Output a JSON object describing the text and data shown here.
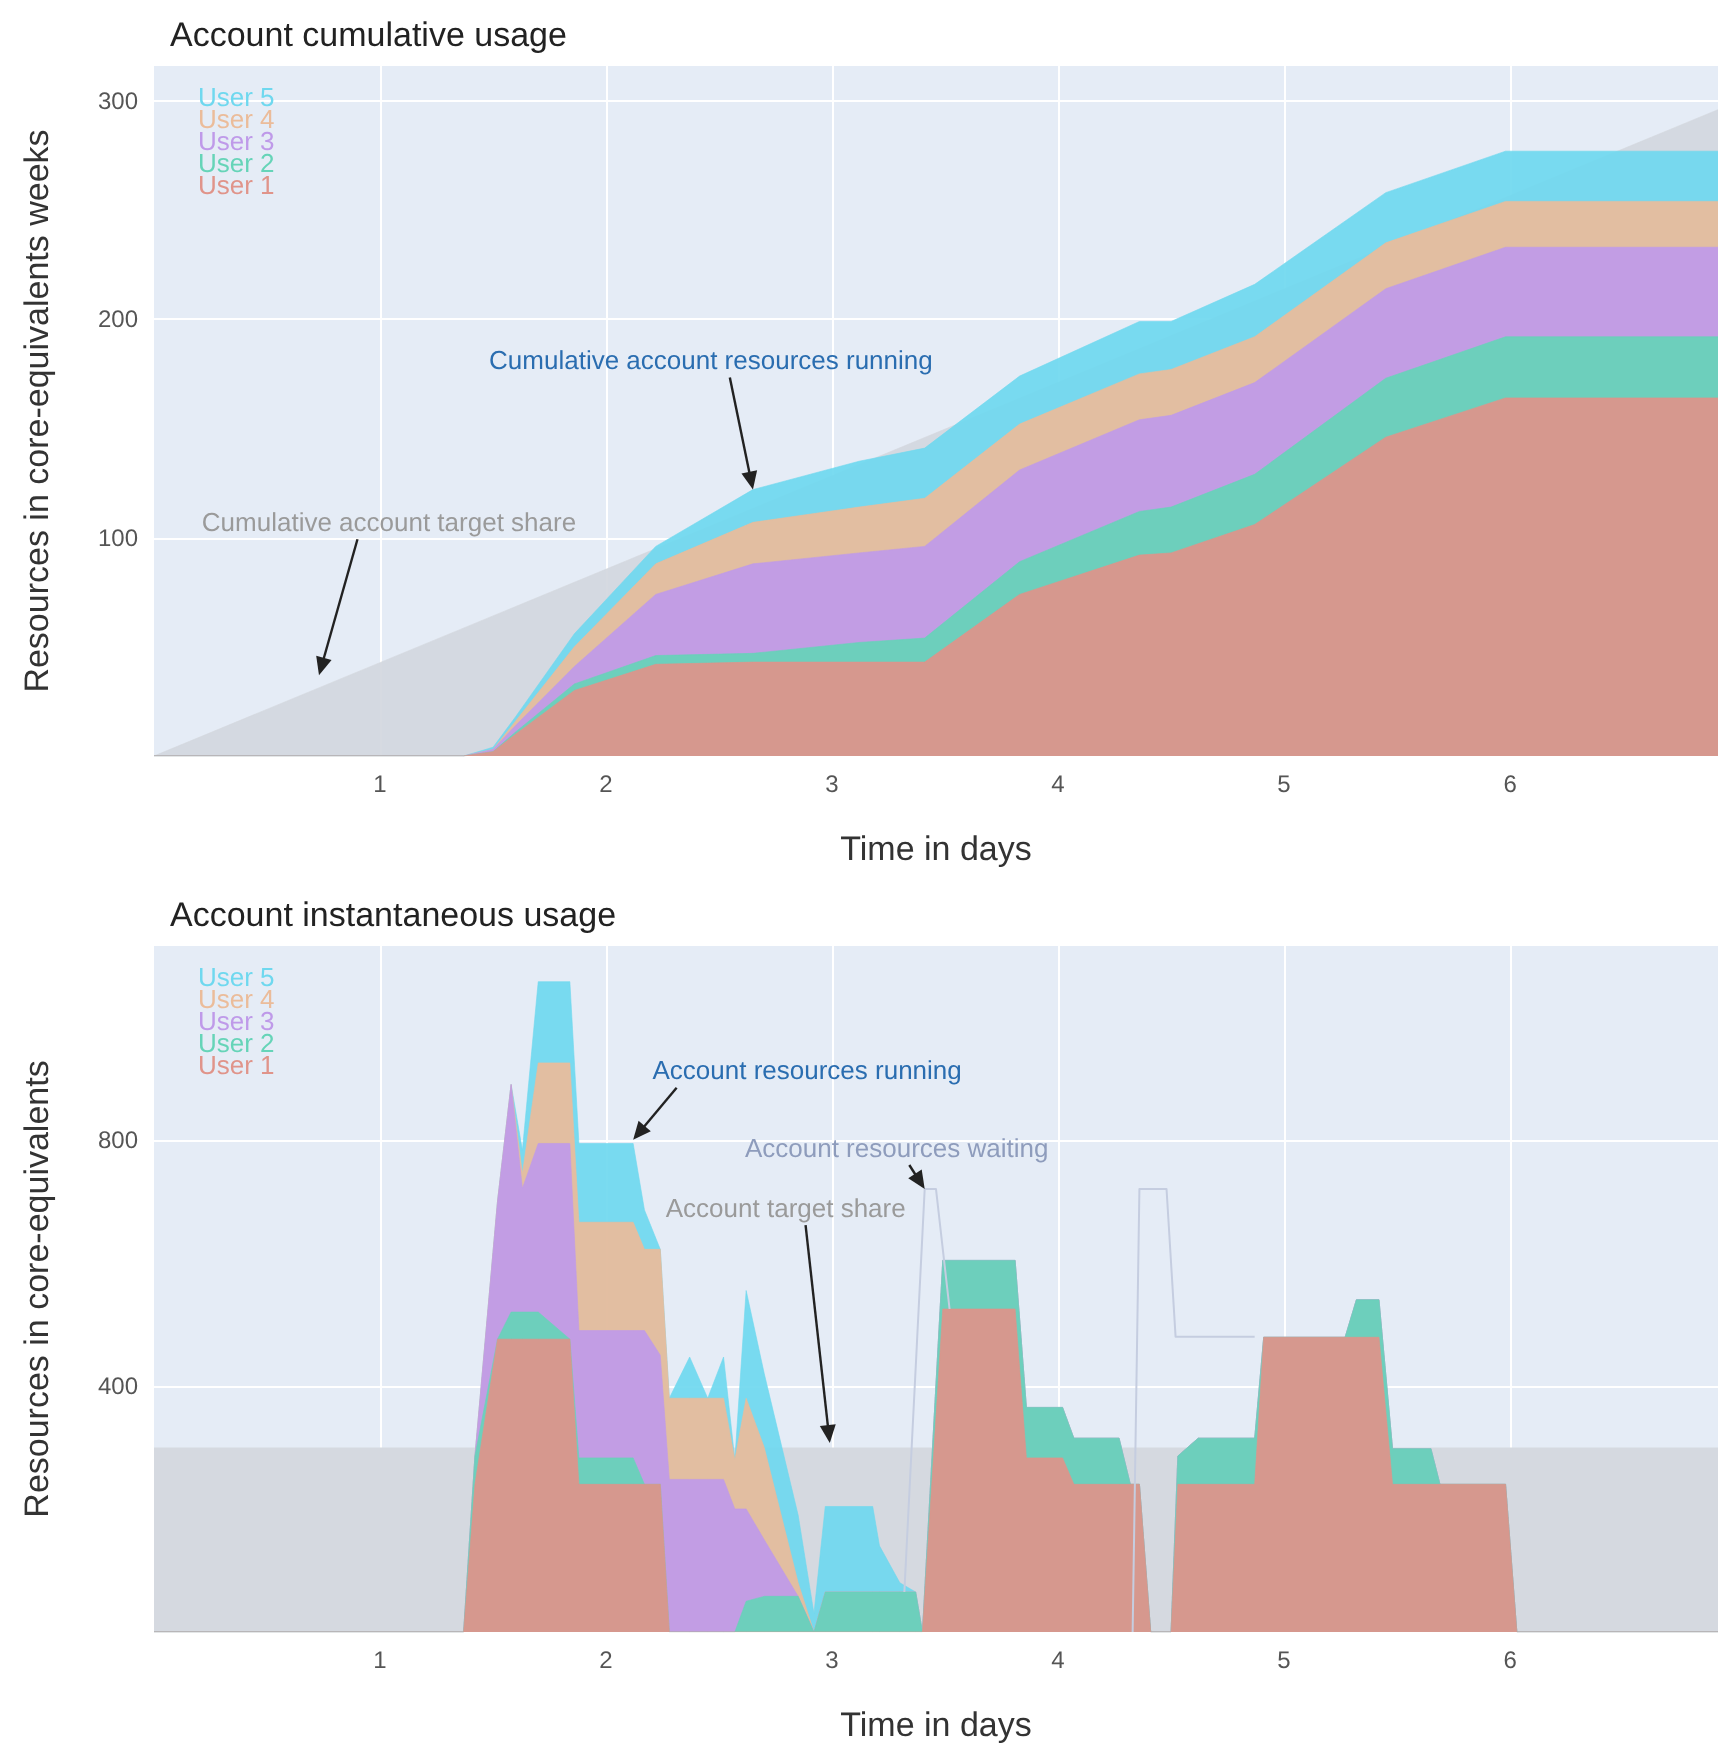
{
  "chart_data": [
    {
      "type": "area",
      "title": "Account cumulative usage",
      "xlabel": "Time in days",
      "ylabel": "Resources in core-equivalents weeks",
      "stacked": true,
      "x": [
        0,
        1.37,
        1.5,
        1.6,
        1.86,
        2.22,
        2.65,
        3.12,
        3.41,
        3.83,
        4.36,
        4.5,
        4.87,
        5.45,
        5.98,
        6.92
      ],
      "series": [
        {
          "name": "User 1",
          "color": "#e0948a",
          "values": [
            0,
            0,
            2,
            10,
            30,
            42,
            43,
            43,
            43,
            74,
            92,
            93,
            106,
            146,
            164,
            164
          ]
        },
        {
          "name": "User 2",
          "color": "#66d4b8",
          "values": [
            0,
            0,
            0,
            1,
            3,
            4,
            4,
            9,
            11,
            15,
            20,
            21,
            23,
            27,
            28,
            28
          ]
        },
        {
          "name": "User 3",
          "color": "#bf9ae9",
          "values": [
            0,
            0,
            1,
            3,
            8,
            28,
            41,
            41,
            42,
            42,
            42,
            42,
            42,
            41,
            41,
            41
          ]
        },
        {
          "name": "User 4",
          "color": "#ebbc9a",
          "values": [
            0,
            0,
            0,
            2,
            9,
            14,
            19,
            21,
            22,
            21,
            21,
            21,
            21,
            21,
            21,
            21
          ]
        },
        {
          "name": "User 5",
          "color": "#6fd8ef",
          "values": [
            0,
            0,
            1,
            2,
            6,
            8,
            15,
            21,
            23,
            22,
            24,
            22,
            24,
            23,
            23,
            23
          ]
        },
        {
          "type": "area",
          "color": "#d3d7de",
          "x": [
            0,
            6.92
          ],
          "values": [
            0,
            296
          ]
        }
      ],
      "xlim": [
        0,
        6.92
      ],
      "xticks": [
        1,
        2,
        3,
        4,
        5,
        6
      ],
      "ylim": [
        0,
        316
      ],
      "yticks": [
        100,
        200,
        300
      ],
      "grid": true,
      "legend": "top left",
      "marker": "none",
      "annotations": [
        {
          "text": "Cumulative account resources running",
          "x": 2.65,
          "y": 122
        },
        {
          "text": "Cumulative account target share",
          "x": 0.73,
          "y": 37
        }
      ]
    },
    {
      "type": "area",
      "title": "Account instantaneous usage",
      "xlabel": "Time in days",
      "ylabel": "Resources in core-equivalents",
      "stacked": true,
      "x": [
        0,
        1.37,
        1.42,
        1.52,
        1.58,
        1.63,
        1.7,
        1.84,
        1.88,
        2.12,
        2.17,
        2.24,
        2.28,
        2.37,
        2.45,
        2.52,
        2.57,
        2.62,
        2.7,
        2.85,
        2.92,
        2.97,
        3.18,
        3.21,
        3.3,
        3.37,
        3.4,
        3.49,
        3.81,
        3.86,
        4.02,
        4.07,
        4.27,
        4.32,
        4.36,
        4.41,
        4.5,
        4.53,
        4.62,
        4.87,
        4.91,
        5.27,
        5.32,
        5.42,
        5.48,
        5.65,
        5.69,
        5.98,
        6.03,
        6.92
      ],
      "series": [
        {
          "name": "User 1",
          "color": "#e0948a",
          "values": [
            0,
            0,
            240,
            476,
            476,
            476,
            476,
            476,
            240,
            240,
            240,
            240,
            0,
            0,
            0,
            0,
            0,
            0,
            0,
            0,
            0,
            0,
            0,
            0,
            0,
            0,
            0,
            525,
            525,
            283,
            283,
            240,
            240,
            240,
            240,
            0,
            0,
            240,
            240,
            240,
            479,
            479,
            479,
            479,
            240,
            240,
            240,
            240,
            0,
            0
          ]
        },
        {
          "name": "User 2",
          "color": "#66d4b8",
          "values": [
            0,
            0,
            46,
            0,
            44,
            44,
            44,
            0,
            43,
            43,
            0,
            0,
            0,
            0,
            0,
            0,
            0,
            50,
            58,
            58,
            0,
            65,
            65,
            65,
            65,
            65,
            0,
            79,
            79,
            82,
            82,
            75,
            75,
            0,
            0,
            0,
            0,
            46,
            75,
            75,
            0,
            0,
            61,
            61,
            58,
            58,
            0,
            0,
            0,
            0
          ]
        },
        {
          "name": "User 3",
          "color": "#bf9ae9",
          "values": [
            0,
            0,
            0,
            224,
            370,
            201,
            274,
            318,
            207,
            207,
            250,
            210,
            248,
            248,
            248,
            248,
            200,
            150,
            92,
            0,
            0,
            0,
            0,
            0,
            0,
            0,
            0,
            0,
            0,
            0,
            0,
            0,
            0,
            0,
            0,
            0,
            0,
            0,
            0,
            0,
            0,
            0,
            0,
            0,
            0,
            0,
            0,
            0,
            0,
            0
          ]
        },
        {
          "name": "User 4",
          "color": "#ebbc9a",
          "values": [
            0,
            0,
            0,
            0,
            0,
            24,
            131,
            131,
            176,
            176,
            132,
            172,
            132,
            132,
            132,
            132,
            80,
            180,
            150,
            22,
            0,
            0,
            0,
            0,
            0,
            0,
            0,
            0,
            0,
            0,
            0,
            0,
            0,
            0,
            0,
            0,
            0,
            0,
            0,
            0,
            0,
            0,
            0,
            0,
            0,
            0,
            0,
            0,
            0,
            0
          ]
        },
        {
          "name": "User 5",
          "color": "#6fd8ef",
          "values": [
            0,
            0,
            0,
            0,
            0,
            38,
            132,
            132,
            128,
            128,
            64,
            0,
            0,
            67,
            0,
            67,
            0,
            175,
            120,
            110,
            30,
            139,
            139,
            75,
            15,
            0,
            0,
            0,
            0,
            0,
            0,
            0,
            0,
            0,
            0,
            0,
            0,
            0,
            0,
            0,
            0,
            0,
            0,
            0,
            0,
            0,
            0,
            0,
            0,
            0
          ]
        },
        {
          "type": "line",
          "color": "#c5cde0",
          "x": [
            3.32,
            3.41,
            3.46,
            3.52,
            4.0,
            4.33,
            4.36,
            4.48,
            4.52,
            4.87
          ],
          "values": [
            65,
            720,
            720,
            525,
            null,
            0,
            720,
            720,
            480,
            480
          ]
        }
      ],
      "bands": [
        {
          "axis": "y",
          "from": 0,
          "to": 300,
          "color": "#d5d9e0"
        }
      ],
      "xlim": [
        0,
        6.92
      ],
      "xticks": [
        1,
        2,
        3,
        4,
        5,
        6
      ],
      "ylim": [
        0,
        1115
      ],
      "yticks": [
        400,
        800
      ],
      "grid": true,
      "legend": "top left",
      "marker": "none",
      "annotations": [
        {
          "text": "Account resources running",
          "x": 2.12,
          "y": 800
        },
        {
          "text": "Account resources waiting",
          "x": 3.41,
          "y": 720
        },
        {
          "text": "Account target share",
          "x": 2.99,
          "y": 307
        }
      ]
    }
  ]
}
